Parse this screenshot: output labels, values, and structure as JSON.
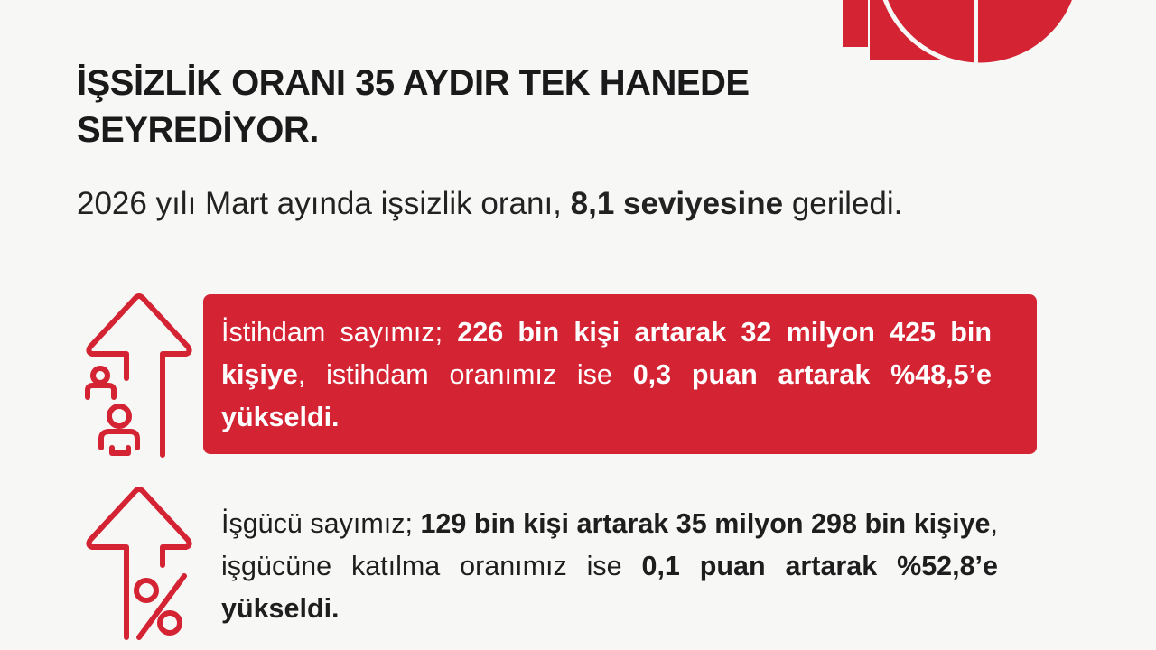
{
  "colors": {
    "accent": "#d42333",
    "text": "#1e1e1e",
    "background": "#f7f7f6"
  },
  "title": "İŞSİZLİK ORANI 35 AYDIR TEK HANEDE SEYREDİYOR.",
  "subtitle": {
    "normal": "2026 yılı Mart ayında işsizlik oranı, ",
    "bold": "8,1 seviyesine",
    "rest": " geriledi."
  },
  "employment": {
    "icon": "arrow-up-people-icon",
    "s1": "İstihdam sayımız; ",
    "s2": "226 bin kişi artarak 32 milyon 425 bin kişiye",
    "s3": ", istihdam oranımız ise ",
    "s4": "0,3 puan artarak %48,5’e yükseldi."
  },
  "labor_force": {
    "icon": "arrow-up-percent-icon",
    "s1": "İşgücü sayımız; ",
    "s2": "129 bin kişi artarak 35 milyon 298 bin kişiye",
    "s3": ", işgücüne katılma oranımız ise ",
    "s4": "0,1 puan artarak %52,8’e yükseldi."
  }
}
